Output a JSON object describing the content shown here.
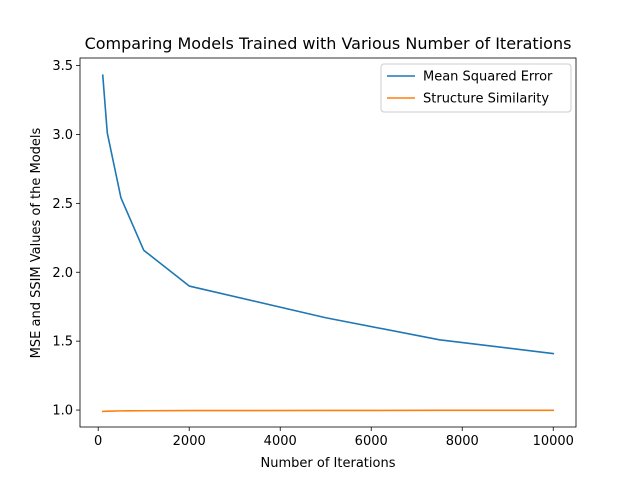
{
  "chart_data": {
    "type": "line",
    "title": "Comparing Models Trained with Various Number of Iterations",
    "xlabel": "Number of Iterations",
    "ylabel": "MSE and SSIM Values of the Models",
    "xlim": [
      -400,
      10500
    ],
    "ylim": [
      0.877,
      3.555
    ],
    "xticks": [
      0,
      2000,
      4000,
      6000,
      8000,
      10000
    ],
    "xtick_labels": [
      "0",
      "2000",
      "4000",
      "6000",
      "8000",
      "10000"
    ],
    "yticks": [
      1.0,
      1.5,
      2.0,
      2.5,
      3.0,
      3.5
    ],
    "ytick_labels": [
      "1.0",
      "1.5",
      "2.0",
      "2.5",
      "3.0",
      "3.5"
    ],
    "grid": false,
    "legend_position": "top-right",
    "series": [
      {
        "name": "Mean Squared Error",
        "color": "#1f77b4",
        "x": [
          100,
          200,
          500,
          1000,
          2000,
          5000,
          7500,
          10000
        ],
        "y": [
          3.43,
          3.01,
          2.54,
          2.16,
          1.9,
          1.67,
          1.51,
          1.41
        ]
      },
      {
        "name": "Structure Similarity",
        "color": "#ff7f0e",
        "x": [
          100,
          200,
          500,
          1000,
          2000,
          5000,
          7500,
          10000
        ],
        "y": [
          0.99,
          0.992,
          0.994,
          0.995,
          0.996,
          0.997,
          0.998,
          0.998
        ]
      }
    ]
  }
}
